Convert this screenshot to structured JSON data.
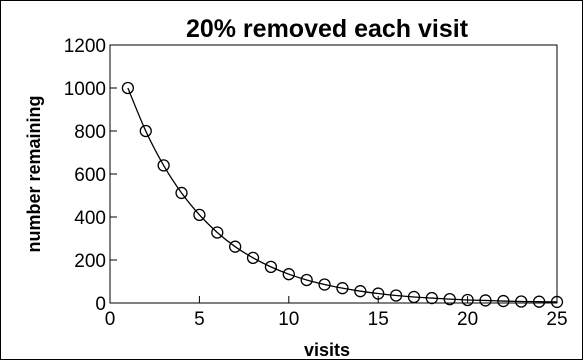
{
  "chart_data": {
    "type": "scatter",
    "title": "20% removed each visit",
    "xlabel": "visits",
    "ylabel": "number remaining",
    "xlim": [
      0,
      25
    ],
    "ylim": [
      0,
      1200
    ],
    "xticks": [
      0,
      5,
      10,
      15,
      20,
      25
    ],
    "yticks": [
      0,
      200,
      400,
      600,
      800,
      1000,
      1200
    ],
    "grid": false,
    "legend": "none",
    "series": [
      {
        "marker": "open-circle",
        "line": "smooth",
        "color": "#000000",
        "x": [
          1,
          2,
          3,
          4,
          5,
          6,
          7,
          8,
          9,
          10,
          11,
          12,
          13,
          14,
          15,
          16,
          17,
          18,
          19,
          20,
          21,
          22,
          23,
          24,
          25
        ],
        "y": [
          1000,
          800,
          640,
          512,
          410,
          328,
          262,
          210,
          168,
          134,
          107,
          86,
          69,
          55,
          44,
          35,
          28,
          23,
          18,
          14,
          12,
          9,
          7,
          6,
          5
        ]
      }
    ]
  }
}
